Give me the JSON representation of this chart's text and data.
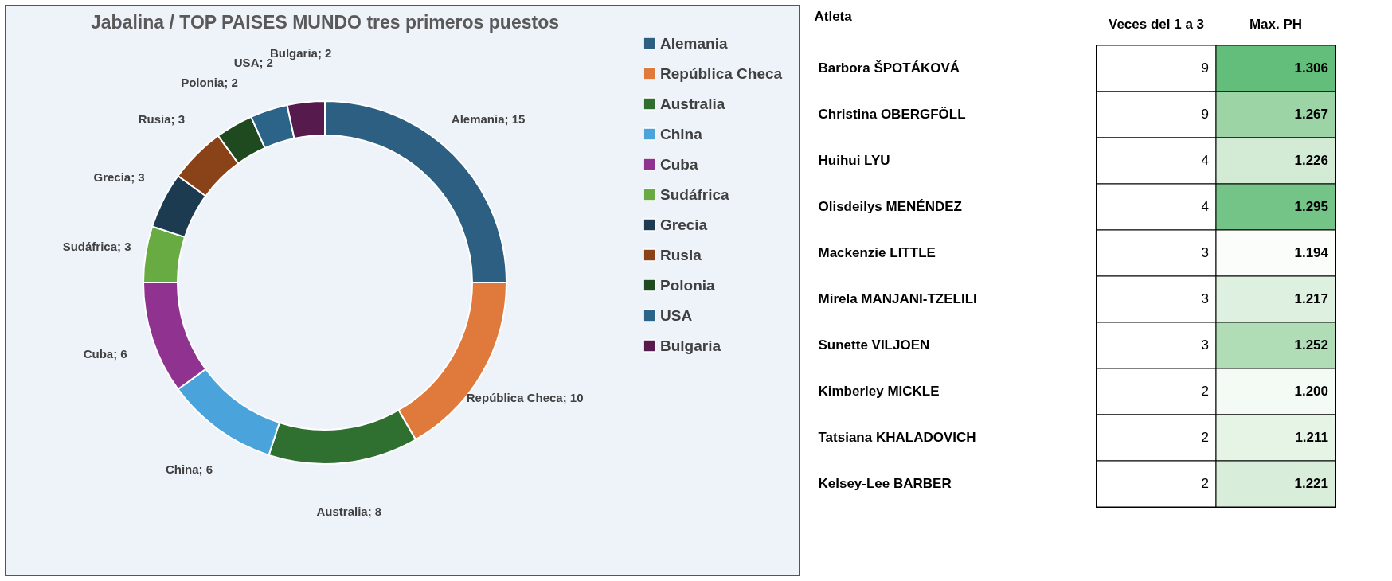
{
  "chart_data": [
    {
      "type": "donut",
      "title": "Jabalina / TOP PAISES MUNDO tres primeros puestos",
      "categories": [
        "Alemania",
        "República Checa",
        "Australia",
        "China",
        "Cuba",
        "Sudáfrica",
        "Grecia",
        "Rusia",
        "Polonia",
        "USA",
        "Bulgaria"
      ],
      "values": [
        15,
        10,
        8,
        6,
        6,
        3,
        3,
        3,
        2,
        2,
        2
      ],
      "colors": [
        "#2c5f81",
        "#df7a3c",
        "#2f6f30",
        "#4aa3da",
        "#8f3290",
        "#68ab42",
        "#1c3a50",
        "#8a4219",
        "#1f4a20",
        "#2b6389",
        "#561a4d"
      ],
      "value_labels": [
        "Alemania; 15",
        "República Checa; 10",
        "Australia; 8",
        "China; 6",
        "Cuba; 6",
        "Sudáfrica; 3",
        "Grecia; 3",
        "Rusia; 3",
        "Polonia; 2",
        "USA; 2",
        "Bulgaria; 2"
      ],
      "legend": "right"
    },
    {
      "type": "heatmap",
      "ylabel": "Atleta",
      "categories": [
        "Veces del 1 a 3",
        "Max. PH"
      ],
      "y_categories": [
        "Barbora ŠPOTÁKOVÁ",
        "Christina OBERGFÖLL",
        "Huihui LYU",
        "Olisdeilys MENÉNDEZ",
        "Mackenzie LITTLE",
        "Mirela MANJANI-TZELILI",
        "Sunette VILJOEN",
        "Kimberley MICKLE",
        "Tatsiana KHALADOVICH",
        "Kelsey-Lee BARBER"
      ],
      "cells": [
        [
          9,
          1.306
        ],
        [
          9,
          1.267
        ],
        [
          4,
          1.226
        ],
        [
          4,
          1.295
        ],
        [
          3,
          1.194
        ],
        [
          3,
          1.217
        ],
        [
          3,
          1.252
        ],
        [
          2,
          1.2
        ],
        [
          2,
          1.211
        ],
        [
          2,
          1.221
        ]
      ],
      "cell_labels": [
        [
          "9",
          "1.306"
        ],
        [
          "9",
          "1.267"
        ],
        [
          "4",
          "1.226"
        ],
        [
          "4",
          "1.295"
        ],
        [
          "3",
          "1.194"
        ],
        [
          "3",
          "1.217"
        ],
        [
          "3",
          "1.252"
        ],
        [
          "2",
          "1.200"
        ],
        [
          "2",
          "1.211"
        ],
        [
          "2",
          "1.221"
        ]
      ]
    }
  ]
}
